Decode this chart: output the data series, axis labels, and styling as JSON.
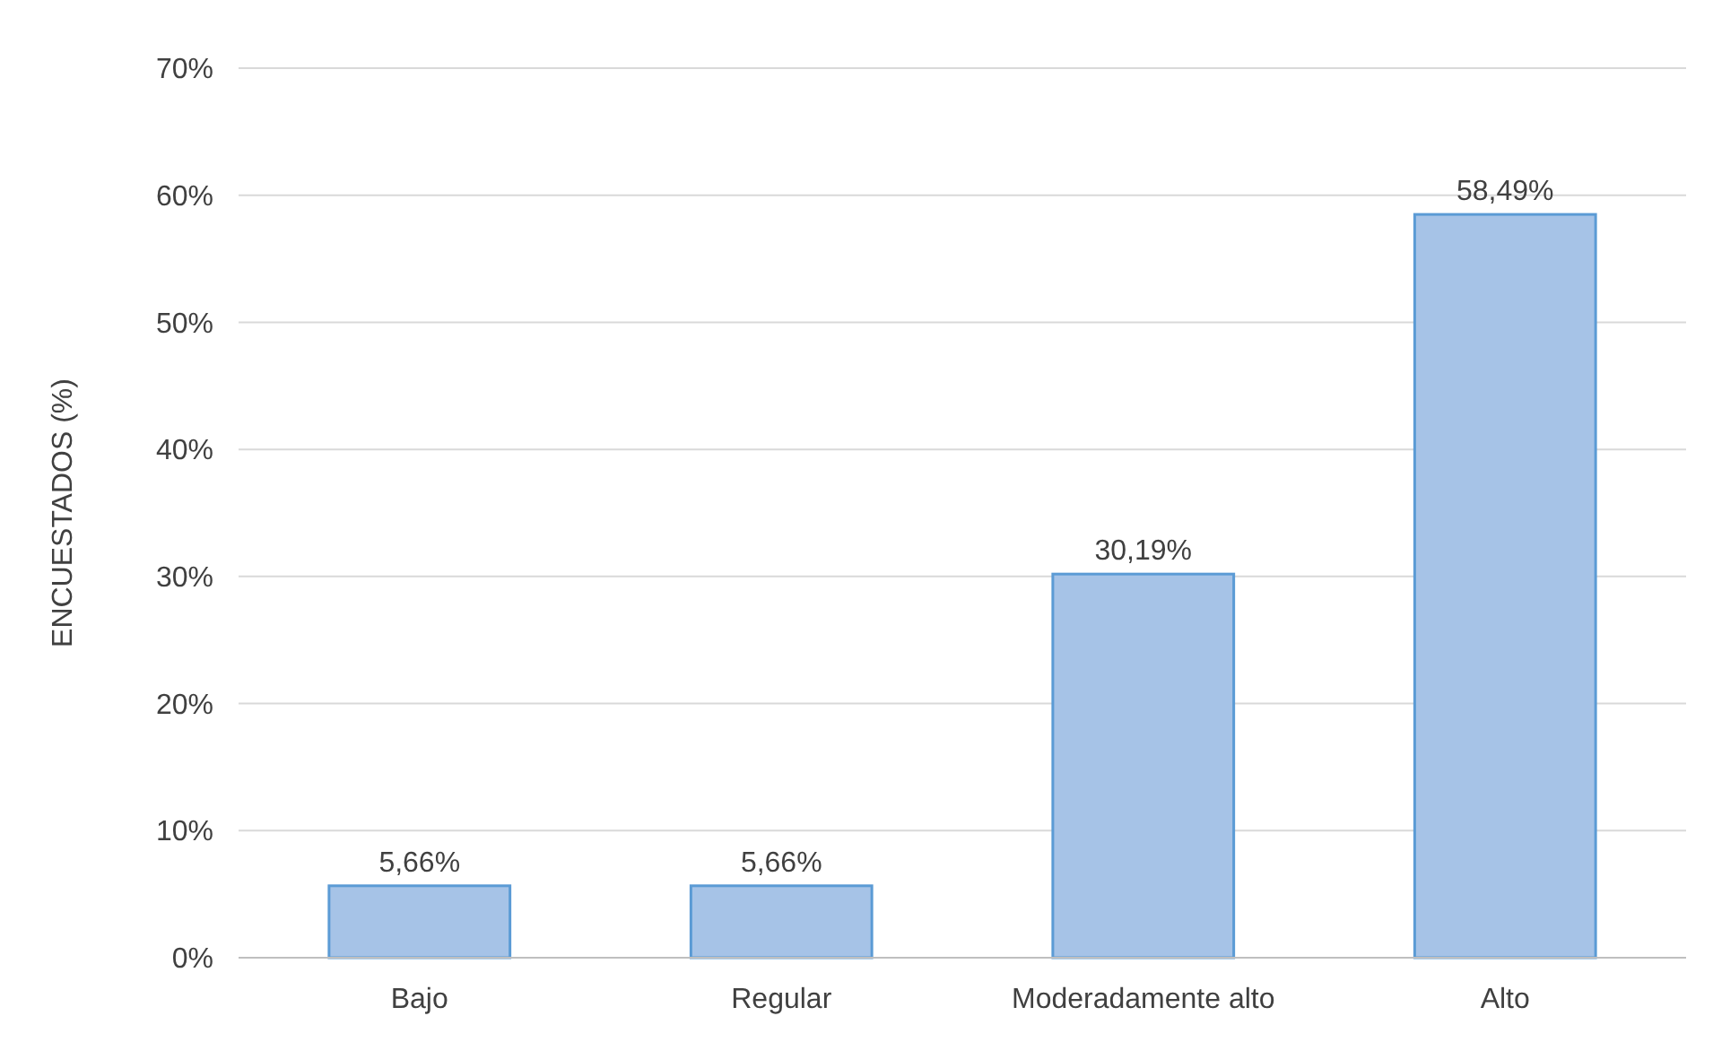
{
  "chart_data": {
    "type": "bar",
    "ylabel": "ENCUESTADOS (%)",
    "categories": [
      "Bajo",
      "Regular",
      "Moderadamente alto",
      "Alto"
    ],
    "values": [
      5.66,
      5.66,
      30.19,
      58.49
    ],
    "value_labels": [
      "5,66%",
      "5,66%",
      "30,19%",
      "58,49%"
    ],
    "color": "#a6c3e7",
    "ylim": [
      0,
      70
    ],
    "yticks": [
      {
        "value": 0,
        "label": "0%"
      },
      {
        "value": 10,
        "label": "10%"
      },
      {
        "value": 20,
        "label": "20%"
      },
      {
        "value": 30,
        "label": "30%"
      },
      {
        "value": 40,
        "label": "40%"
      },
      {
        "value": 50,
        "label": "50%"
      },
      {
        "value": 60,
        "label": "60%"
      },
      {
        "value": 70,
        "label": "70%"
      }
    ],
    "grid": "y"
  }
}
